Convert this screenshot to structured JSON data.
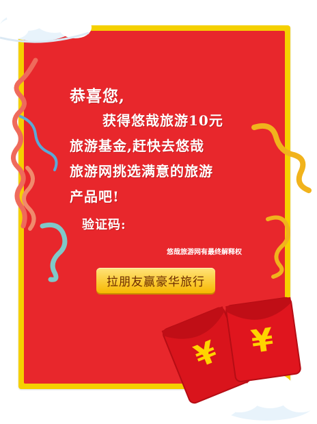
{
  "message": {
    "greeting": "恭喜您,",
    "line1": "获得悠哉旅游10元",
    "line2": "旅游基金,赶快去悠哉",
    "line3": "旅游网挑选满意的旅游",
    "line4": "产品吧!",
    "code_label": "验证码:"
  },
  "rights_note": "悠哉旅游网有最终解释权",
  "cta_label": "拉朋友赢豪华旅行",
  "red_packet": {
    "symbol": "¥"
  },
  "colors": {
    "card_red": "#e8272c",
    "border_yellow": "#f5d000",
    "button_gold": "#f7b800",
    "ribbon_gold": "#f1b31c",
    "ribbon_teal": "#7fc8c8",
    "ribbon_coral": "#ef6a5b",
    "ribbon_blue": "#5aa9d8"
  }
}
